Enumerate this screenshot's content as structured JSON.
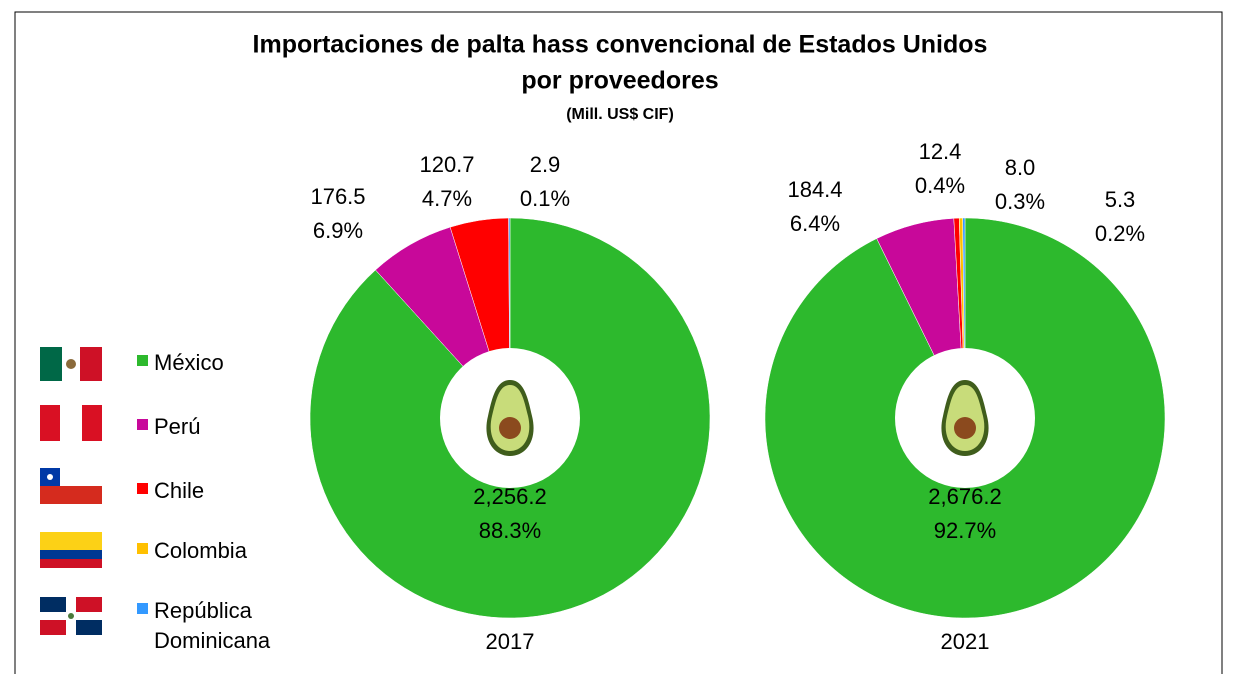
{
  "chart_data": {
    "type": "donut",
    "title": "Importaciones de palta hass convencional de Estados Unidos",
    "title_line2": "por proveedores",
    "subtitle": "(Mill. US$ CIF)",
    "categories": [
      "México",
      "Perú",
      "Chile",
      "Colombia",
      "República Dominicana"
    ],
    "colors": [
      "#2db92d",
      "#c8089a",
      "#ff0000",
      "#ffc000",
      "#3399ff"
    ],
    "charts": [
      {
        "label": "2017",
        "values": [
          2256.2,
          176.5,
          120.7,
          null,
          2.9
        ],
        "value_labels": [
          "2,256.2",
          "176.5",
          "120.7",
          null,
          "2.9"
        ],
        "share_labels": [
          "88.3%",
          "6.9%",
          "4.7%",
          null,
          "0.1%"
        ]
      },
      {
        "label": "2021",
        "values": [
          2676.2,
          184.4,
          12.4,
          8.0,
          5.3
        ],
        "value_labels": [
          "2,676.2",
          "184.4",
          "12.4",
          "8.0",
          "5.3"
        ],
        "share_labels": [
          "92.7%",
          "6.4%",
          "0.4%",
          "0.3%",
          "0.2%"
        ]
      }
    ]
  }
}
